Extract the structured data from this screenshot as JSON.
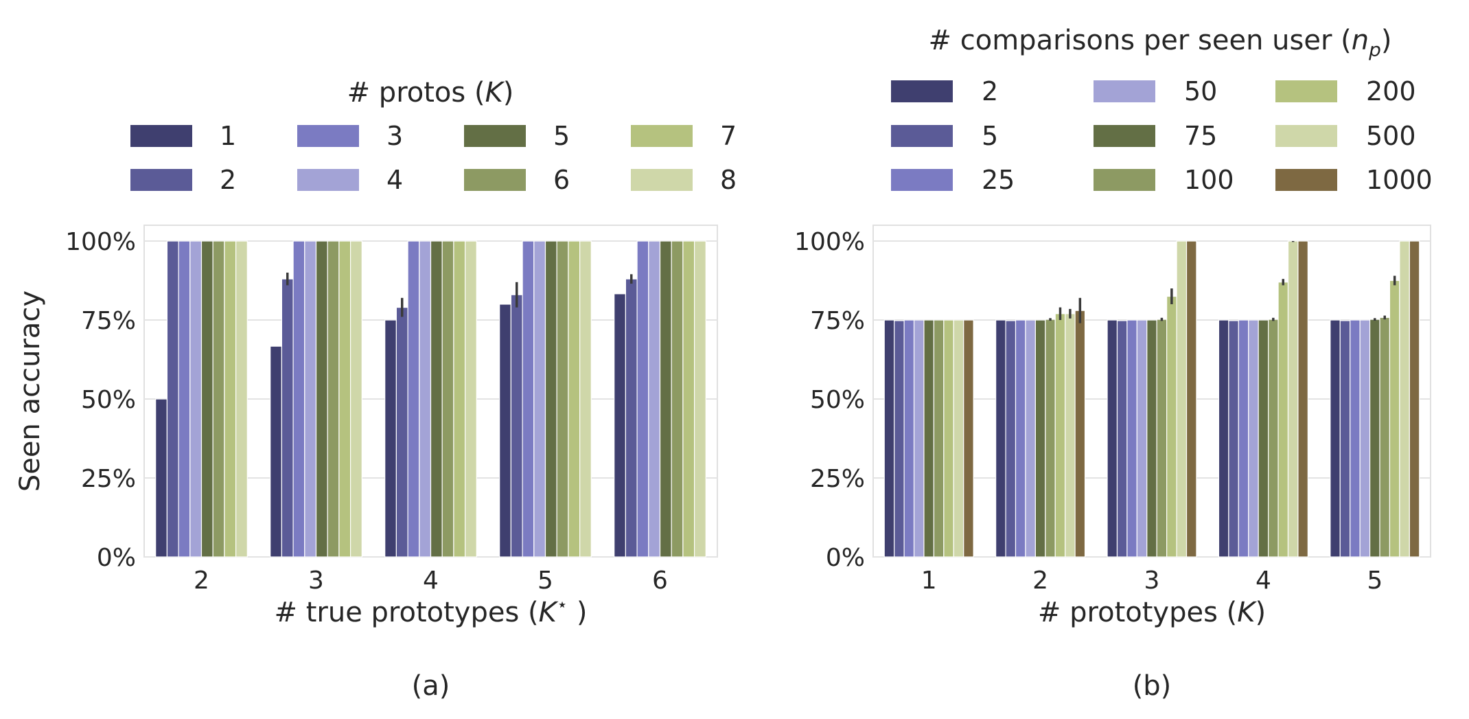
{
  "chart_data": [
    {
      "type": "bar",
      "panel_label": "(a)",
      "legend_title": "# protos (K)",
      "legend_title_parts": [
        "# protos (",
        "K",
        ")"
      ],
      "legend_placement": "top",
      "xlabel": "# true prototypes (K⋆)",
      "xlabel_parts": [
        "# true prototypes (",
        "K",
        "⋆",
        " )"
      ],
      "ylabel": "Seen accuracy",
      "ylim": [
        0,
        1.05
      ],
      "yticks": [
        "0%",
        "25%",
        "50%",
        "75%",
        "100%"
      ],
      "grid": true,
      "categories": [
        "2",
        "3",
        "4",
        "5",
        "6"
      ],
      "series": [
        {
          "name": "1",
          "color": "#3f3f6f",
          "values": [
            0.5,
            0.667,
            0.75,
            0.8,
            0.833
          ],
          "err": [
            0,
            0,
            0,
            0,
            0
          ]
        },
        {
          "name": "2",
          "color": "#5b5b97",
          "values": [
            1.0,
            0.88,
            0.79,
            0.83,
            0.88
          ],
          "err": [
            0,
            0.02,
            0.03,
            0.04,
            0.015
          ]
        },
        {
          "name": "3",
          "color": "#7b7bc2",
          "values": [
            1.0,
            1.0,
            1.0,
            1.0,
            1.0
          ],
          "err": [
            0,
            0,
            0,
            0,
            0
          ]
        },
        {
          "name": "4",
          "color": "#a3a3d6",
          "values": [
            1.0,
            1.0,
            1.0,
            1.0,
            1.0
          ],
          "err": [
            0,
            0,
            0,
            0,
            0
          ]
        },
        {
          "name": "5",
          "color": "#636f45",
          "values": [
            1.0,
            1.0,
            1.0,
            1.0,
            1.0
          ],
          "err": [
            0,
            0,
            0,
            0,
            0
          ]
        },
        {
          "name": "6",
          "color": "#8d9a63",
          "values": [
            1.0,
            1.0,
            1.0,
            1.0,
            1.0
          ],
          "err": [
            0,
            0,
            0,
            0,
            0
          ]
        },
        {
          "name": "7",
          "color": "#b5c27f",
          "values": [
            1.0,
            1.0,
            1.0,
            1.0,
            1.0
          ],
          "err": [
            0,
            0,
            0,
            0,
            0
          ]
        },
        {
          "name": "8",
          "color": "#cfd7a9",
          "values": [
            1.0,
            1.0,
            1.0,
            1.0,
            1.0
          ],
          "err": [
            0,
            0,
            0,
            0,
            0
          ]
        }
      ]
    },
    {
      "type": "bar",
      "panel_label": "(b)",
      "legend_title": "# comparisons per seen user (n_p)",
      "legend_title_parts": [
        "# comparisons per seen user (",
        "n",
        "p",
        ")"
      ],
      "legend_placement": "top",
      "xlabel": "# prototypes (K)",
      "xlabel_parts": [
        "# prototypes (",
        "K",
        ")"
      ],
      "ylabel": "",
      "ylim": [
        0,
        1.05
      ],
      "yticks": [
        "0%",
        "25%",
        "50%",
        "75%",
        "100%"
      ],
      "grid": true,
      "categories": [
        "1",
        "2",
        "3",
        "4",
        "5"
      ],
      "series": [
        {
          "name": "2",
          "color": "#3f3f6f",
          "values": [
            0.75,
            0.75,
            0.75,
            0.75,
            0.75
          ],
          "err": [
            0,
            0,
            0,
            0,
            0
          ]
        },
        {
          "name": "5",
          "color": "#5b5b97",
          "values": [
            0.748,
            0.748,
            0.748,
            0.748,
            0.748
          ],
          "err": [
            0,
            0,
            0,
            0,
            0
          ]
        },
        {
          "name": "25",
          "color": "#7b7bc2",
          "values": [
            0.75,
            0.75,
            0.75,
            0.75,
            0.75
          ],
          "err": [
            0,
            0,
            0,
            0,
            0
          ]
        },
        {
          "name": "50",
          "color": "#a3a3d6",
          "values": [
            0.75,
            0.75,
            0.75,
            0.75,
            0.75
          ],
          "err": [
            0,
            0,
            0,
            0,
            0
          ]
        },
        {
          "name": "75",
          "color": "#636f45",
          "values": [
            0.75,
            0.75,
            0.75,
            0.75,
            0.752
          ],
          "err": [
            0,
            0,
            0,
            0,
            0.004
          ]
        },
        {
          "name": "100",
          "color": "#8d9a63",
          "values": [
            0.75,
            0.752,
            0.752,
            0.752,
            0.758
          ],
          "err": [
            0,
            0.004,
            0.005,
            0.005,
            0.006
          ]
        },
        {
          "name": "200",
          "color": "#b5c27f",
          "values": [
            0.75,
            0.77,
            0.825,
            0.87,
            0.875
          ],
          "err": [
            0,
            0.02,
            0.025,
            0.01,
            0.015
          ]
        },
        {
          "name": "500",
          "color": "#cfd7a9",
          "values": [
            0.75,
            0.77,
            1.0,
            1.0,
            1.0
          ],
          "err": [
            0,
            0.015,
            0,
            0.003,
            0
          ]
        },
        {
          "name": "1000",
          "color": "#7e6942",
          "values": [
            0.75,
            0.78,
            1.0,
            1.0,
            1.0
          ],
          "err": [
            0,
            0.04,
            0,
            0,
            0
          ]
        }
      ]
    }
  ]
}
